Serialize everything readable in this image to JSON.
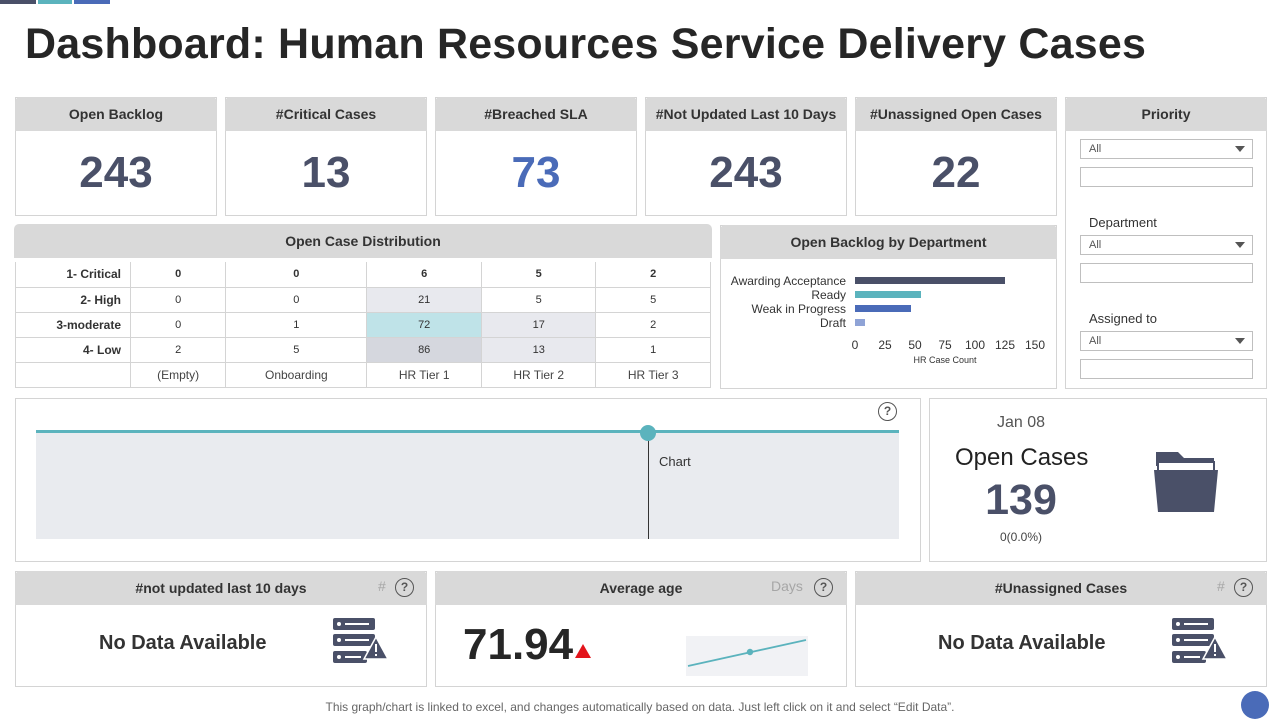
{
  "title": "Dashboard: Human Resources Service Delivery Cases",
  "colors": {
    "accent_dark": "#4a5068",
    "accent_blue": "#4a6bb8",
    "accent_teal": "#5bb3bd",
    "header_grey": "#d9d9d9",
    "alert_red": "#e3141b"
  },
  "kpis": [
    {
      "label": "Open Backlog",
      "value": "243"
    },
    {
      "label": "#Critical Cases",
      "value": "13"
    },
    {
      "label": "#Breached SLA",
      "value": "73"
    },
    {
      "label": "#Not Updated Last 10 Days",
      "value": "243"
    },
    {
      "label": "#Unassigned  Open Cases",
      "value": "22"
    }
  ],
  "filters": {
    "title": "Priority",
    "priority_value": "All",
    "department_label": "Department",
    "department_value": "All",
    "assigned_label": "Assigned to",
    "assigned_value": "All"
  },
  "distribution": {
    "title": "Open Case Distribution",
    "rows": [
      {
        "label": "1- Critical",
        "values": [
          "0",
          "0",
          "6",
          "5",
          "2"
        ]
      },
      {
        "label": "2- High",
        "values": [
          "0",
          "0",
          "21",
          "5",
          "5"
        ]
      },
      {
        "label": "3-moderate",
        "values": [
          "0",
          "1",
          "72",
          "17",
          "2"
        ]
      },
      {
        "label": "4- Low",
        "values": [
          "2",
          "5",
          "86",
          "13",
          "1"
        ]
      }
    ],
    "columns": [
      "(Empty)",
      "Onboarding",
      "HR Tier 1",
      "HR Tier 2",
      "HR Tier 3"
    ]
  },
  "chart_data": {
    "type": "bar",
    "orientation": "horizontal",
    "title": "Open Backlog by Department",
    "categories": [
      "Awarding Acceptance",
      "Ready",
      "Weak in Progress",
      "Draft"
    ],
    "values": [
      125,
      55,
      47,
      8
    ],
    "colors": [
      "#4a5068",
      "#5bb3bd",
      "#4a6bb8",
      "#8fa3d6"
    ],
    "xlabel": "HR Case Count",
    "ylabel": "",
    "xlim": [
      0,
      150
    ],
    "ticks": [
      "0",
      "25",
      "50",
      "75",
      "100",
      "125",
      "150"
    ]
  },
  "timeline": {
    "label": "Chart",
    "help": "?"
  },
  "open_cases": {
    "date": "Jan 08",
    "title": "Open Cases",
    "value": "139",
    "sub": "0(0.0%)",
    "icon": "folder-icon"
  },
  "bottom": {
    "not_updated": {
      "title": "#not  updated last 10 days",
      "unit": "#",
      "message": "No Data Available",
      "icon": "server-warning-icon"
    },
    "average_age": {
      "title": "Average age",
      "unit": "Days",
      "value": "71.94",
      "trend_icon": "triangle-up-icon"
    },
    "unassigned": {
      "title": "#Unassigned Cases",
      "unit": "#",
      "message": "No Data Available",
      "icon": "server-warning-icon"
    }
  },
  "footer": "This graph/chart is linked to excel,  and changes automatically based on data. Just left click on it and select “Edit Data”."
}
